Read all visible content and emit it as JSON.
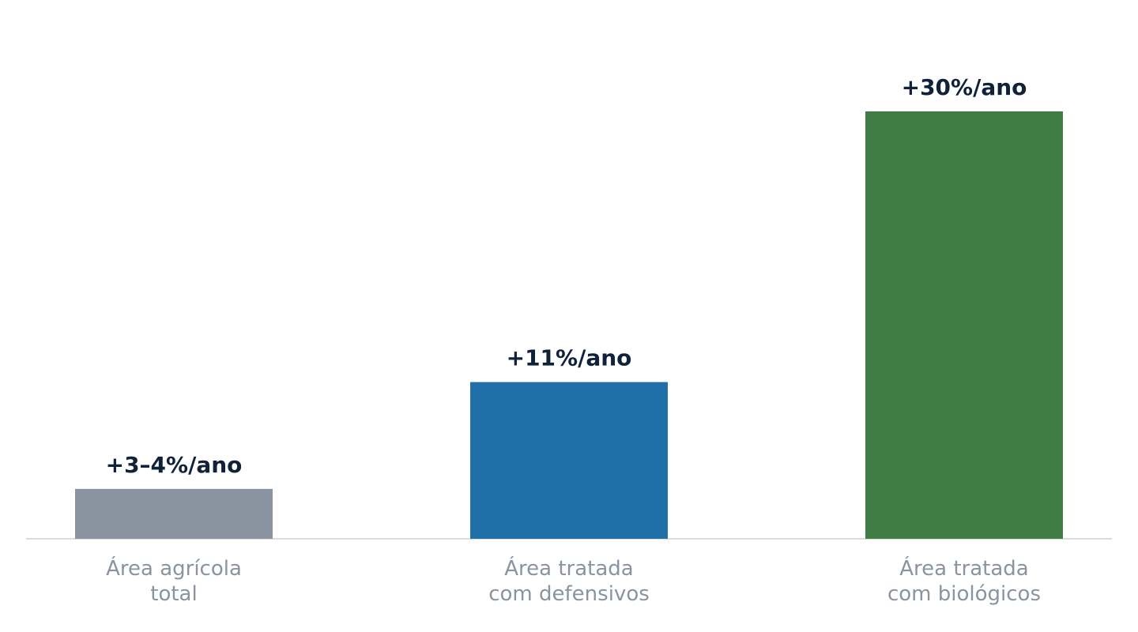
{
  "chart_data": {
    "type": "bar",
    "categories": [
      "Área agrícola\ntotal",
      "Área tratada\ncom defensivos",
      "Área tratada\ncom biológicos"
    ],
    "values": [
      3.5,
      11,
      30
    ],
    "value_labels": [
      "+3–4%/ano",
      "+11%/ano",
      "+30%/ano"
    ],
    "colors": [
      "#8a94a0",
      "#1f6fa8",
      "#3f7c44"
    ]
  }
}
